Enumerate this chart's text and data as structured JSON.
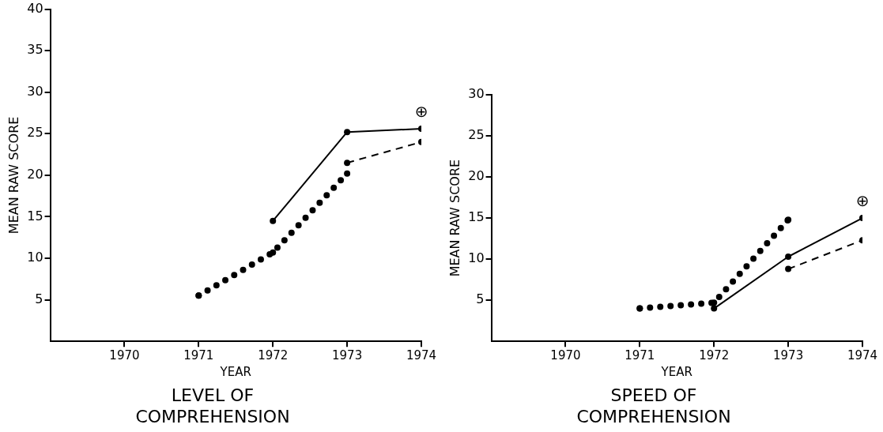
{
  "chart_data": [
    {
      "type": "line",
      "title": "LEVEL OF COMPREHENSION",
      "xlabel": "YEAR",
      "ylabel": "MEAN RAW SCORE",
      "xlim": [
        1969,
        1974
      ],
      "xticks": [
        1970,
        1971,
        1972,
        1973,
        1974
      ],
      "ylim": [
        0,
        40
      ],
      "yticks": [
        5,
        10,
        15,
        20,
        25,
        30,
        35,
        40
      ],
      "grid": false,
      "legend": false,
      "series": [
        {
          "color": "#000000",
          "x": [
            1972,
            1973,
            1974
          ],
          "values": [
            14.5,
            25.2,
            25.6
          ],
          "line_style": "solid",
          "marker": "circle"
        },
        {
          "color": "#000000",
          "x": [
            1973,
            1974
          ],
          "values": [
            21.5,
            24
          ],
          "line_style": "dashed",
          "marker": "circle"
        },
        {
          "color": "#000000",
          "x": [
            1971,
            1972,
            1973
          ],
          "values": [
            5.5,
            10.7,
            20.2
          ],
          "line_style": "dotted",
          "marker": "circle"
        }
      ],
      "annotations": [
        "⊕"
      ]
    },
    {
      "type": "line",
      "title": "SPEED OF COMPREHENSION",
      "xlabel": "YEAR",
      "ylabel": "MEAN RAW SCORE",
      "xlim": [
        1969,
        1974
      ],
      "xticks": [
        1970,
        1971,
        1972,
        1973,
        1974
      ],
      "ylim": [
        0,
        30
      ],
      "yticks": [
        5,
        10,
        15,
        20,
        25,
        30
      ],
      "grid": false,
      "legend": false,
      "series": [
        {
          "color": "#000000",
          "x": [
            1972,
            1973,
            1974
          ],
          "values": [
            4.0,
            10.3,
            15.0
          ],
          "line_style": "solid",
          "marker": "circle"
        },
        {
          "color": "#000000",
          "x": [
            1973,
            1974
          ],
          "values": [
            8.8,
            12.3
          ],
          "line_style": "dashed",
          "marker": "circle"
        },
        {
          "color": "#000000",
          "x": [
            1971,
            1972,
            1973
          ],
          "values": [
            4.0,
            4.7,
            14.8
          ],
          "line_style": "dotted",
          "marker": "circle"
        }
      ],
      "annotations": [
        "⊕"
      ]
    }
  ]
}
